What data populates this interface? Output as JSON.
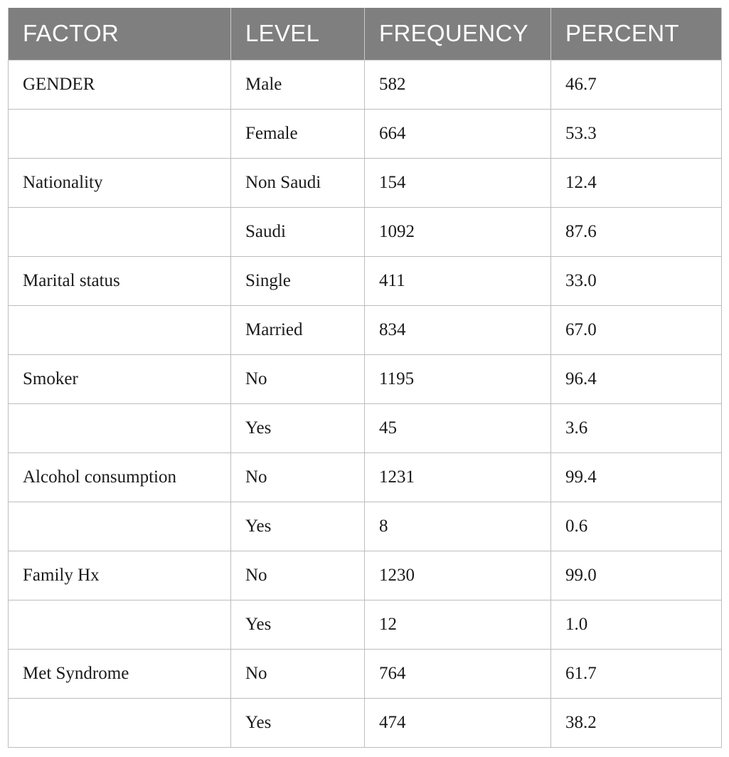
{
  "table": {
    "headers": [
      "FACTOR",
      "LEVEL",
      "FREQUENCY",
      "PERCENT"
    ],
    "rows": [
      [
        "GENDER",
        "Male",
        "582",
        "46.7"
      ],
      [
        "",
        "Female",
        "664",
        "53.3"
      ],
      [
        "Nationality",
        "Non Saudi",
        "154",
        "12.4"
      ],
      [
        "",
        "Saudi",
        "1092",
        "87.6"
      ],
      [
        "Marital status",
        "Single",
        "411",
        "33.0"
      ],
      [
        "",
        "Married",
        "834",
        "67.0"
      ],
      [
        "Smoker",
        "No",
        "1195",
        "96.4"
      ],
      [
        "",
        "Yes",
        "45",
        "3.6"
      ],
      [
        "Alcohol consumption",
        "No",
        "1231",
        "99.4"
      ],
      [
        "",
        "Yes",
        "8",
        "0.6"
      ],
      [
        "Family Hx",
        "No",
        "1230",
        "99.0"
      ],
      [
        "",
        "Yes",
        "12",
        "1.0"
      ],
      [
        "Met Syndrome",
        "No",
        "764",
        "61.7"
      ],
      [
        "",
        "Yes",
        "474",
        "38.2"
      ]
    ]
  },
  "colors": {
    "header_bg": "#7f7f7f",
    "header_text": "#ffffff",
    "border": "#bdbdbd",
    "body_text": "#1a1a1a"
  }
}
